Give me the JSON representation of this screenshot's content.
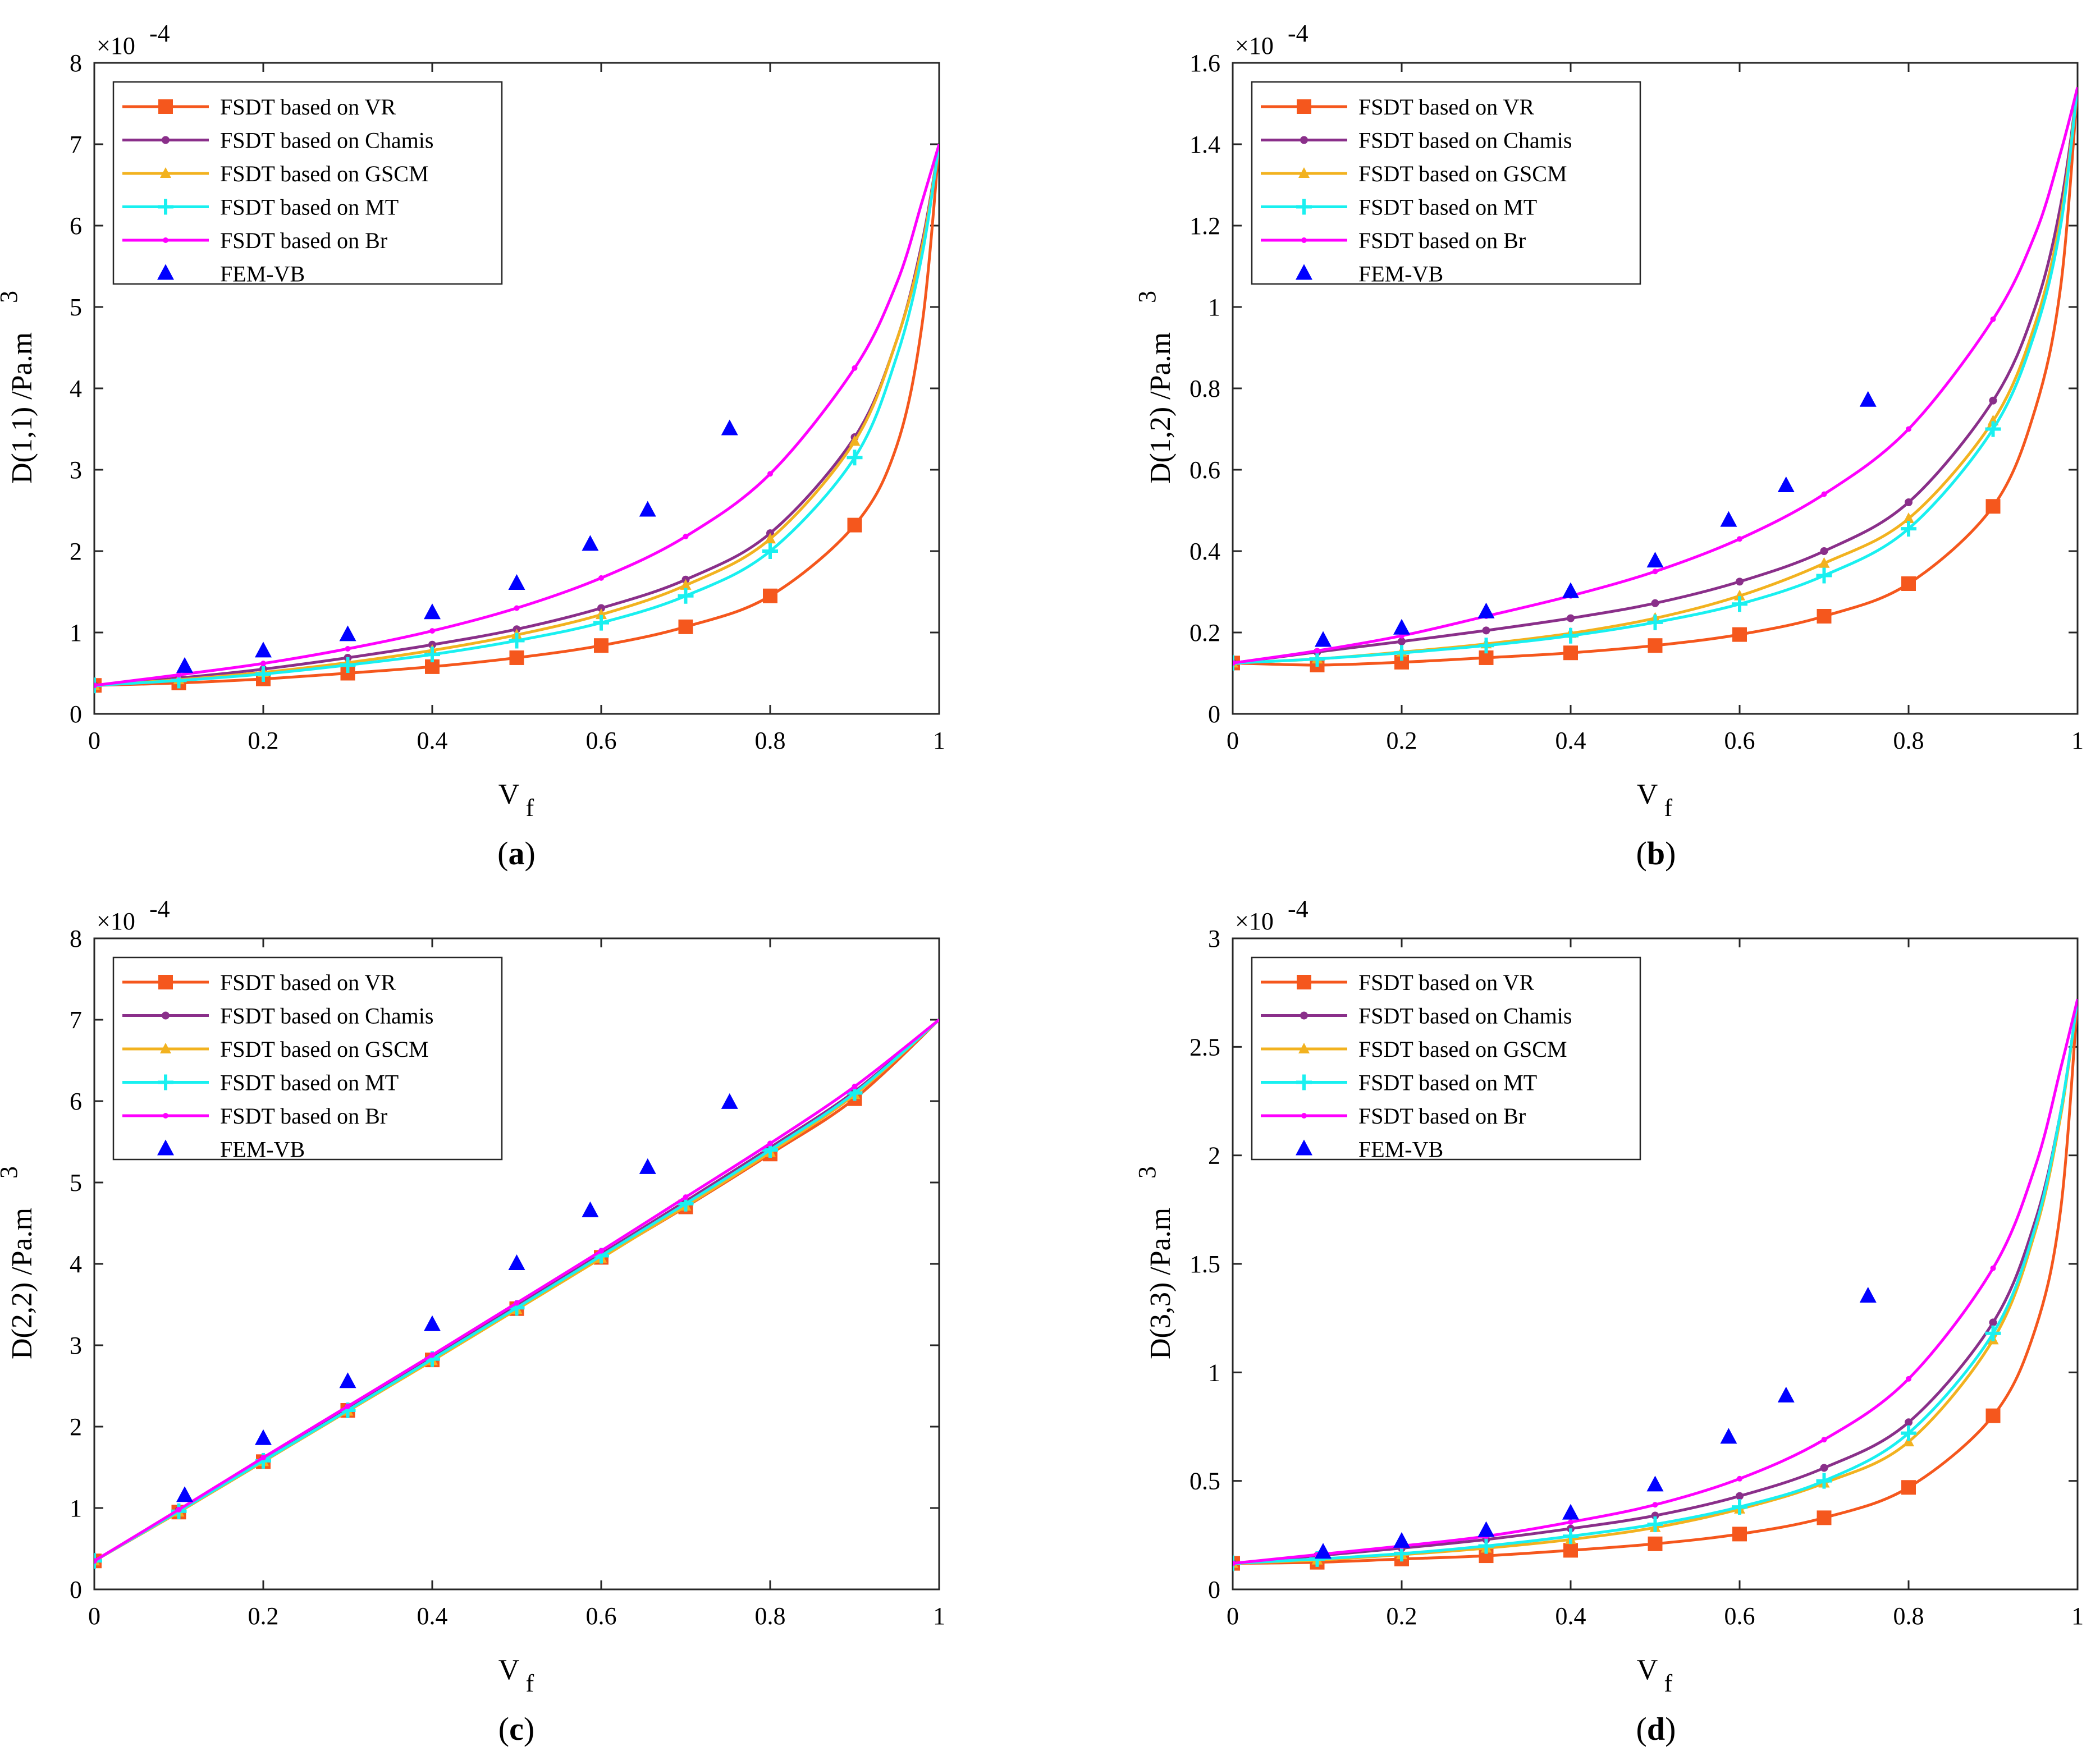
{
  "figure": {
    "caption_labels": [
      "a",
      "b",
      "c",
      "d"
    ]
  },
  "legend": {
    "entries": [
      {
        "name": "FSDT based on VR",
        "color": "#f5571d",
        "marker": "square"
      },
      {
        "name": "FSDT based on Chamis",
        "color": "#8a2f8a",
        "marker": "circle"
      },
      {
        "name": "FSDT based on GSCM",
        "color": "#f2b21f",
        "marker": "triangle"
      },
      {
        "name": "FSDT based on MT",
        "color": "#19f0f0",
        "marker": "plus"
      },
      {
        "name": "FSDT based on Br",
        "color": "#ff00ff",
        "marker": "dot"
      },
      {
        "name": "FEM-VB",
        "color": "#0000ff",
        "marker": "triangle-filled"
      }
    ]
  },
  "chart_data": [
    {
      "type": "line",
      "caption": "a",
      "xlabel_main": "V",
      "xlabel_sub": "f",
      "ylabel_prefix": "D(1,1) /Pa.m",
      "ylabel_sup": "3",
      "multiplier_base": "×10",
      "multiplier_exp": "-4",
      "xlim": [
        0,
        1
      ],
      "ylim": [
        0,
        8
      ],
      "xticks": [
        0,
        0.2,
        0.4,
        0.6,
        0.8,
        1
      ],
      "xtick_labels": [
        "0",
        "0.2",
        "0.4",
        "0.6",
        "0.8",
        "1"
      ],
      "yticks": [
        0,
        1,
        2,
        3,
        4,
        5,
        6,
        7,
        8
      ],
      "ytick_labels": [
        "0",
        "1",
        "2",
        "3",
        "4",
        "5",
        "6",
        "7",
        "8"
      ],
      "x": [
        0,
        0.1,
        0.2,
        0.3,
        0.4,
        0.5,
        0.6,
        0.7,
        0.8,
        0.9,
        0.95,
        0.98,
        1.0
      ],
      "series": [
        {
          "name": "FSDT based on VR",
          "values": [
            0.35,
            0.38,
            0.43,
            0.5,
            0.58,
            0.69,
            0.84,
            1.07,
            1.45,
            2.32,
            3.3,
            4.8,
            7.0
          ]
        },
        {
          "name": "FSDT based on Chamis",
          "values": [
            0.35,
            0.44,
            0.55,
            0.69,
            0.85,
            1.04,
            1.3,
            1.65,
            2.22,
            3.4,
            4.6,
            5.8,
            7.0
          ]
        },
        {
          "name": "FSDT based on GSCM",
          "values": [
            0.35,
            0.42,
            0.51,
            0.63,
            0.78,
            0.97,
            1.22,
            1.58,
            2.15,
            3.35,
            4.6,
            5.75,
            7.0
          ]
        },
        {
          "name": "FSDT based on MT",
          "values": [
            0.35,
            0.41,
            0.49,
            0.6,
            0.73,
            0.9,
            1.12,
            1.45,
            2.0,
            3.15,
            4.4,
            5.65,
            7.0
          ]
        },
        {
          "name": "FSDT based on Br",
          "values": [
            0.35,
            0.48,
            0.62,
            0.8,
            1.02,
            1.3,
            1.67,
            2.18,
            2.95,
            4.25,
            5.3,
            6.3,
            7.0
          ]
        }
      ],
      "fem": {
        "name": "FEM-VB",
        "x": [
          0,
          0.107,
          0.2,
          0.3,
          0.4,
          0.5,
          0.587,
          0.655,
          0.752
        ],
        "values": [
          0.35,
          0.58,
          0.77,
          0.97,
          1.24,
          1.6,
          2.08,
          2.5,
          3.5
        ]
      }
    },
    {
      "type": "line",
      "caption": "b",
      "xlabel_main": "V",
      "xlabel_sub": "f",
      "ylabel_prefix": "D(1,2) /Pa.m",
      "ylabel_sup": "3",
      "multiplier_base": "×10",
      "multiplier_exp": "-4",
      "xlim": [
        0,
        1
      ],
      "ylim": [
        0,
        1.6
      ],
      "xticks": [
        0,
        0.2,
        0.4,
        0.6,
        0.8,
        1
      ],
      "xtick_labels": [
        "0",
        "0.2",
        "0.4",
        "0.6",
        "0.8",
        "1"
      ],
      "yticks": [
        0,
        0.2,
        0.4,
        0.6,
        0.8,
        1,
        1.2,
        1.4,
        1.6
      ],
      "ytick_labels": [
        "0",
        "0.2",
        "0.4",
        "0.6",
        "0.8",
        "1",
        "1.2",
        "1.4",
        "1.6"
      ],
      "x": [
        0,
        0.1,
        0.2,
        0.3,
        0.4,
        0.5,
        0.6,
        0.7,
        0.8,
        0.9,
        0.95,
        0.98,
        1.0
      ],
      "series": [
        {
          "name": "FSDT based on VR",
          "values": [
            0.125,
            0.12,
            0.127,
            0.138,
            0.15,
            0.168,
            0.195,
            0.24,
            0.32,
            0.51,
            0.75,
            1.05,
            1.54
          ]
        },
        {
          "name": "FSDT based on Chamis",
          "values": [
            0.125,
            0.152,
            0.178,
            0.205,
            0.235,
            0.272,
            0.325,
            0.4,
            0.52,
            0.77,
            1.0,
            1.25,
            1.54
          ]
        },
        {
          "name": "FSDT based on GSCM",
          "values": [
            0.125,
            0.135,
            0.152,
            0.172,
            0.198,
            0.235,
            0.29,
            0.37,
            0.48,
            0.72,
            0.96,
            1.22,
            1.54
          ]
        },
        {
          "name": "FSDT based on MT",
          "values": [
            0.125,
            0.135,
            0.15,
            0.168,
            0.192,
            0.225,
            0.27,
            0.34,
            0.455,
            0.7,
            0.94,
            1.2,
            1.54
          ]
        },
        {
          "name": "FSDT based on Br",
          "values": [
            0.125,
            0.155,
            0.192,
            0.24,
            0.29,
            0.35,
            0.43,
            0.54,
            0.7,
            0.97,
            1.18,
            1.38,
            1.54
          ]
        }
      ],
      "fem": {
        "name": "FEM-VB",
        "x": [
          0,
          0.107,
          0.2,
          0.3,
          0.4,
          0.5,
          0.587,
          0.655,
          0.752
        ],
        "values": [
          0.125,
          0.18,
          0.21,
          0.25,
          0.3,
          0.375,
          0.475,
          0.56,
          0.77
        ]
      }
    },
    {
      "type": "line",
      "caption": "c",
      "xlabel_main": "V",
      "xlabel_sub": "f",
      "ylabel_prefix": "D(2,2) /Pa.m",
      "ylabel_sup": "3",
      "multiplier_base": "×10",
      "multiplier_exp": "-4",
      "xlim": [
        0,
        1
      ],
      "ylim": [
        0,
        8
      ],
      "xticks": [
        0,
        0.2,
        0.4,
        0.6,
        0.8,
        1
      ],
      "xtick_labels": [
        "0",
        "0.2",
        "0.4",
        "0.6",
        "0.8",
        "1"
      ],
      "yticks": [
        0,
        1,
        2,
        3,
        4,
        5,
        6,
        7,
        8
      ],
      "ytick_labels": [
        "0",
        "1",
        "2",
        "3",
        "4",
        "5",
        "6",
        "7",
        "8"
      ],
      "x": [
        0,
        0.1,
        0.2,
        0.3,
        0.4,
        0.5,
        0.6,
        0.7,
        0.8,
        0.9,
        1.0
      ],
      "series": [
        {
          "name": "FSDT based on VR",
          "values": [
            0.35,
            0.95,
            1.57,
            2.2,
            2.82,
            3.45,
            4.08,
            4.7,
            5.35,
            6.03,
            7.0
          ]
        },
        {
          "name": "FSDT based on Chamis",
          "values": [
            0.35,
            0.97,
            1.6,
            2.22,
            2.85,
            3.48,
            4.12,
            4.77,
            5.43,
            6.12,
            7.0
          ]
        },
        {
          "name": "FSDT based on GSCM",
          "values": [
            0.35,
            0.95,
            1.57,
            2.19,
            2.81,
            3.44,
            4.07,
            4.71,
            5.37,
            6.08,
            7.0
          ]
        },
        {
          "name": "FSDT based on MT",
          "values": [
            0.35,
            0.96,
            1.58,
            2.2,
            2.83,
            3.46,
            4.1,
            4.74,
            5.4,
            6.1,
            7.0
          ]
        },
        {
          "name": "FSDT based on Br",
          "values": [
            0.35,
            0.98,
            1.62,
            2.25,
            2.88,
            3.52,
            4.16,
            4.82,
            5.48,
            6.18,
            7.0
          ]
        }
      ],
      "fem": {
        "name": "FEM-VB",
        "x": [
          0,
          0.107,
          0.2,
          0.3,
          0.4,
          0.5,
          0.587,
          0.655,
          0.752
        ],
        "values": [
          0.35,
          1.15,
          1.85,
          2.55,
          3.25,
          4.0,
          4.65,
          5.18,
          5.98
        ]
      }
    },
    {
      "type": "line",
      "caption": "d",
      "xlabel_main": "V",
      "xlabel_sub": "f",
      "ylabel_prefix": "D(3,3) /Pa.m",
      "ylabel_sup": "3",
      "multiplier_base": "×10",
      "multiplier_exp": "-4",
      "xlim": [
        0,
        1
      ],
      "ylim": [
        0,
        3
      ],
      "xticks": [
        0,
        0.2,
        0.4,
        0.6,
        0.8,
        1
      ],
      "xtick_labels": [
        "0",
        "0.2",
        "0.4",
        "0.6",
        "0.8",
        "1"
      ],
      "yticks": [
        0,
        0.5,
        1,
        1.5,
        2,
        2.5,
        3
      ],
      "ytick_labels": [
        "0",
        "0.5",
        "1",
        "1.5",
        "2",
        "2.5",
        "3"
      ],
      "x": [
        0,
        0.1,
        0.2,
        0.3,
        0.4,
        0.5,
        0.6,
        0.7,
        0.8,
        0.9,
        0.95,
        0.98,
        1.0
      ],
      "series": [
        {
          "name": "FSDT based on VR",
          "values": [
            0.12,
            0.125,
            0.14,
            0.155,
            0.18,
            0.21,
            0.255,
            0.33,
            0.47,
            0.8,
            1.2,
            1.75,
            2.72
          ]
        },
        {
          "name": "FSDT based on Chamis",
          "values": [
            0.12,
            0.155,
            0.19,
            0.23,
            0.28,
            0.34,
            0.43,
            0.56,
            0.77,
            1.23,
            1.7,
            2.2,
            2.72
          ]
        },
        {
          "name": "FSDT based on GSCM",
          "values": [
            0.12,
            0.135,
            0.16,
            0.19,
            0.23,
            0.285,
            0.37,
            0.49,
            0.68,
            1.15,
            1.65,
            2.18,
            2.72
          ]
        },
        {
          "name": "FSDT based on MT",
          "values": [
            0.12,
            0.14,
            0.165,
            0.2,
            0.245,
            0.3,
            0.38,
            0.5,
            0.72,
            1.18,
            1.67,
            2.2,
            2.72
          ]
        },
        {
          "name": "FSDT based on Br",
          "values": [
            0.12,
            0.16,
            0.2,
            0.245,
            0.31,
            0.39,
            0.51,
            0.69,
            0.97,
            1.48,
            1.95,
            2.4,
            2.72
          ]
        }
      ],
      "fem": {
        "name": "FEM-VB",
        "x": [
          0,
          0.107,
          0.2,
          0.3,
          0.4,
          0.5,
          0.587,
          0.655,
          0.752
        ],
        "values": [
          0.12,
          0.17,
          0.22,
          0.27,
          0.35,
          0.48,
          0.7,
          0.89,
          1.35
        ]
      }
    }
  ]
}
